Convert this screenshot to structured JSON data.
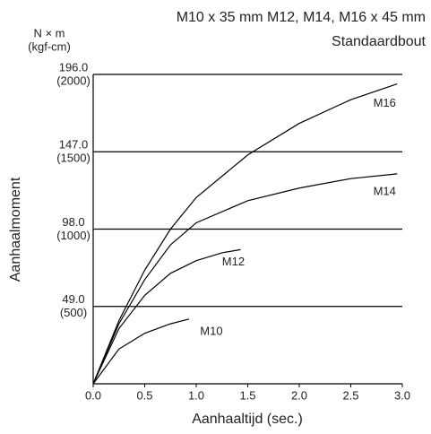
{
  "chart_data": {
    "type": "line",
    "title": "M10 x 35 mm M12, M14, M16 x 45 mm",
    "subtitle": "Standaardbout",
    "y_unit": "N × m",
    "y_unit_alt": "(kgf-cm)",
    "y_label": "Aanhaalmoment",
    "x_label": "Aanhaaltijd (sec.)",
    "xlim": [
      0,
      3.0
    ],
    "ylim": [
      0,
      196
    ],
    "xticks": [
      {
        "value": 0,
        "label": "0.0"
      },
      {
        "value": 0.5,
        "label": "0.5"
      },
      {
        "value": 1.0,
        "label": "1.0"
      },
      {
        "value": 1.5,
        "label": "1.5"
      },
      {
        "value": 2.0,
        "label": "2.0"
      },
      {
        "value": 2.5,
        "label": "2.5"
      },
      {
        "value": 3.0,
        "label": "3.0"
      }
    ],
    "yticks": [
      {
        "value": 49,
        "label": "49.0",
        "sublabel": "(500)"
      },
      {
        "value": 98,
        "label": "98.0",
        "sublabel": "(1000)"
      },
      {
        "value": 147,
        "label": "147.0",
        "sublabel": "(1500)"
      },
      {
        "value": 196,
        "label": "196.0",
        "sublabel": "(2000)"
      }
    ],
    "grid": true,
    "series": [
      {
        "name": "M10",
        "color": "#000000",
        "x": [
          0,
          0.25,
          0.5,
          0.75,
          0.93
        ],
        "values": [
          0,
          22,
          32,
          38,
          41
        ]
      },
      {
        "name": "M12",
        "color": "#000000",
        "x": [
          0,
          0.25,
          0.5,
          0.75,
          1.0,
          1.25,
          1.43
        ],
        "values": [
          0,
          35,
          56,
          70,
          78,
          83,
          85
        ]
      },
      {
        "name": "M14",
        "color": "#000000",
        "x": [
          0,
          0.25,
          0.5,
          0.75,
          1.0,
          1.5,
          2.0,
          2.5,
          2.95
        ],
        "values": [
          0,
          38,
          66,
          88,
          102,
          116,
          124,
          130,
          133
        ]
      },
      {
        "name": "M16",
        "color": "#000000",
        "x": [
          0,
          0.25,
          0.5,
          0.75,
          1.0,
          1.5,
          2.0,
          2.5,
          2.95
        ],
        "values": [
          0,
          40,
          72,
          98,
          118,
          145,
          165,
          180,
          190
        ]
      }
    ]
  }
}
